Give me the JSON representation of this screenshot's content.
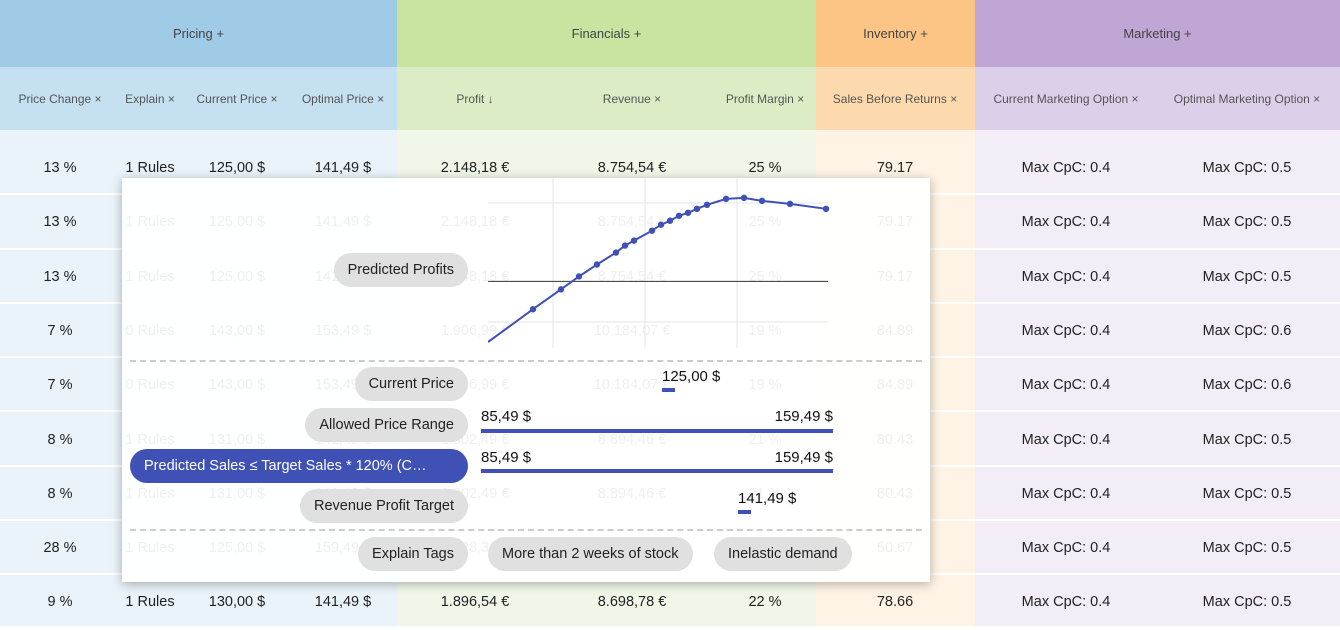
{
  "groups": [
    "Pricing +",
    "Financials +",
    "Inventory +",
    "Marketing +"
  ],
  "columns": [
    "Price Change ×",
    "Explain ×",
    "Current Price ×",
    "Optimal Price ×",
    "Profit ↓",
    "Revenue ×",
    "Profit Margin ×",
    "Sales Before Returns ×",
    "Current Marketing Option ×",
    "Optimal Marketing Option ×"
  ],
  "rows": [
    [
      "13 %",
      "1 Rules",
      "125,00 $",
      "141,49 $",
      "2.148,18 €",
      "8.754,54 €",
      "25 %",
      "79.17",
      "Max CpC: 0.4",
      "Max CpC: 0.5"
    ],
    [
      "13 %",
      "1 Rules",
      "125,00 $",
      "141,49 $",
      "2.148,18 €",
      "8.754,54 €",
      "25 %",
      "79.17",
      "Max CpC: 0.4",
      "Max CpC: 0.5"
    ],
    [
      "13 %",
      "1 Rules",
      "125,00 $",
      "141,49 $",
      "2.148,18 €",
      "8.754,54 €",
      "25 %",
      "79.17",
      "Max CpC: 0.4",
      "Max CpC: 0.5"
    ],
    [
      "7 %",
      "0 Rules",
      "143,00 $",
      "153,49 $",
      "1.906,99 €",
      "10.184,07 €",
      "19 %",
      "84.89",
      "Max CpC: 0.4",
      "Max CpC: 0.6"
    ],
    [
      "7 %",
      "0 Rules",
      "143,00 $",
      "153,49 $",
      "1.906,99 €",
      "10.184,07 €",
      "19 %",
      "84.89",
      "Max CpC: 0.4",
      "Max CpC: 0.6"
    ],
    [
      "8 %",
      "1 Rules",
      "131,00 $",
      "141,49 $",
      "1.902,49 €",
      "8.894,46 €",
      "21 %",
      "80.43",
      "Max CpC: 0.4",
      "Max CpC: 0.5"
    ],
    [
      "8 %",
      "1 Rules",
      "131,00 $",
      "141,49 $",
      "1.902,49 €",
      "8.894,46 €",
      "21 %",
      "80.43",
      "Max CpC: 0.4",
      "Max CpC: 0.5"
    ],
    [
      "28 %",
      "1 Rules",
      "125,00 $",
      "159,49 $",
      "1.828,30 €",
      "8.433,12 €",
      "22 %",
      "50.67",
      "Max CpC: 0.4",
      "Max CpC: 0.5"
    ],
    [
      "9 %",
      "1 Rules",
      "130,00 $",
      "141,49 $",
      "1.896,54 €",
      "8.698,78 €",
      "22 %",
      "78.66",
      "Max CpC: 0.4",
      "Max CpC: 0.5"
    ]
  ],
  "popup": {
    "chart": {
      "label": "Predicted Profits",
      "x": [
        0,
        45,
        73,
        91,
        109,
        128,
        137,
        146,
        164,
        173,
        182,
        191,
        200,
        209,
        219,
        238,
        256,
        274,
        302,
        338
      ],
      "values": [
        -61,
        -28,
        -8,
        5,
        17,
        29,
        36,
        41,
        51,
        57,
        61,
        66,
        69,
        73,
        77,
        83,
        84,
        81,
        78,
        73
      ],
      "xlim": [
        0,
        340
      ],
      "ylim": [
        -67,
        104
      ]
    },
    "current_price": {
      "label": "Current Price",
      "value": "125,00 $"
    },
    "allowed_range": {
      "label": "Allowed Price Range",
      "min": "85,49 $",
      "max": "159,49 $"
    },
    "predicted_sales": {
      "label": "Predicted Sales ≤ Target Sales * 120% (C…",
      "min": "85,49 $",
      "max": "159,49 $"
    },
    "revenue_target": {
      "label": "Revenue Profit Target",
      "value": "141,49 $"
    },
    "explain_tags": {
      "label": "Explain Tags",
      "tags": [
        "More than 2 weeks of stock",
        "Inelastic demand"
      ]
    }
  }
}
